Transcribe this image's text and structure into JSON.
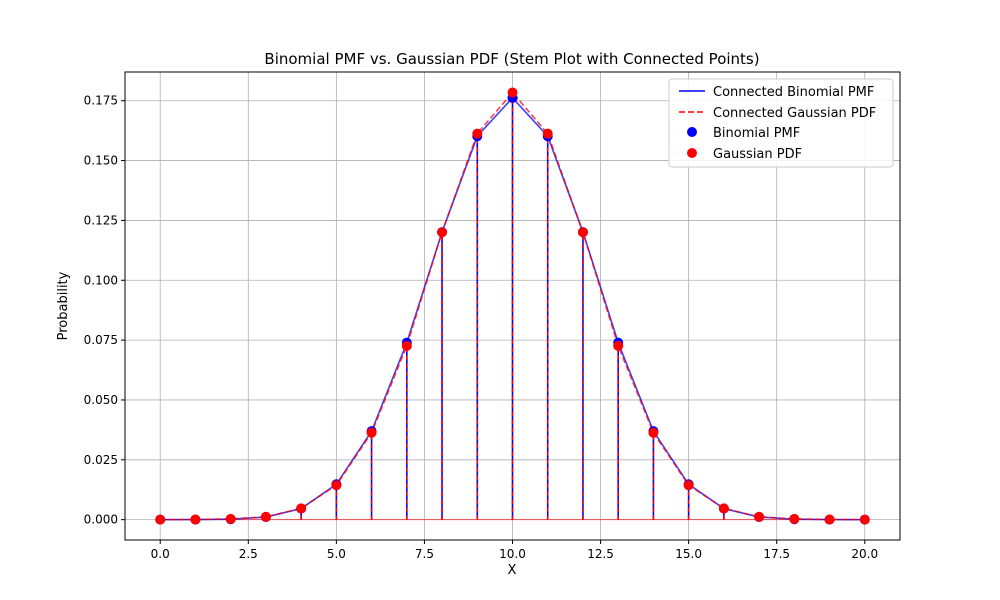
{
  "chart_data": {
    "type": "line",
    "title": "Binomial PMF vs. Gaussian PDF (Stem Plot with Connected Points)",
    "xlabel": "X",
    "ylabel": "Probability",
    "xlim": [
      -1,
      21
    ],
    "ylim": [
      -0.0085,
      0.187
    ],
    "xticks": [
      0,
      2.5,
      5,
      7.5,
      10,
      12.5,
      15,
      17.5,
      20
    ],
    "xtick_labels": [
      "0.0",
      "2.5",
      "5.0",
      "7.5",
      "10.0",
      "12.5",
      "15.0",
      "17.5",
      "20.0"
    ],
    "yticks": [
      0,
      0.025,
      0.05,
      0.075,
      0.1,
      0.125,
      0.15,
      0.175
    ],
    "ytick_labels": [
      "0.000",
      "0.025",
      "0.050",
      "0.075",
      "0.100",
      "0.125",
      "0.150",
      "0.175"
    ],
    "grid": true,
    "legend_position": "top-right",
    "x": [
      0,
      1,
      2,
      3,
      4,
      5,
      6,
      7,
      8,
      9,
      10,
      11,
      12,
      13,
      14,
      15,
      16,
      17,
      18,
      19,
      20
    ],
    "series": [
      {
        "name": "Binomial PMF",
        "line_label": "Connected Binomial PMF",
        "marker_label": "Binomial PMF",
        "color": "#0000ff",
        "line_style": "solid",
        "values": [
          1e-06,
          1.9e-05,
          0.000181,
          0.001087,
          0.004621,
          0.014786,
          0.036964,
          0.073929,
          0.120134,
          0.160179,
          0.176197,
          0.160179,
          0.120134,
          0.073929,
          0.036964,
          0.014786,
          0.004621,
          0.001087,
          0.000181,
          1.9e-05,
          1e-06
        ]
      },
      {
        "name": "Gaussian PDF",
        "line_label": "Connected Gaussian PDF",
        "marker_label": "Gaussian PDF",
        "color": "#ff0000",
        "line_style": "dashed",
        "values": [
          1.3e-05,
          5.9e-05,
          0.000306,
          0.00119,
          0.004698,
          0.014394,
          0.036297,
          0.072613,
          0.120049,
          0.161231,
          0.178412,
          0.161231,
          0.120049,
          0.072613,
          0.036297,
          0.014394,
          0.004698,
          0.00119,
          0.000306,
          5.9e-05,
          1.3e-05
        ]
      }
    ]
  }
}
